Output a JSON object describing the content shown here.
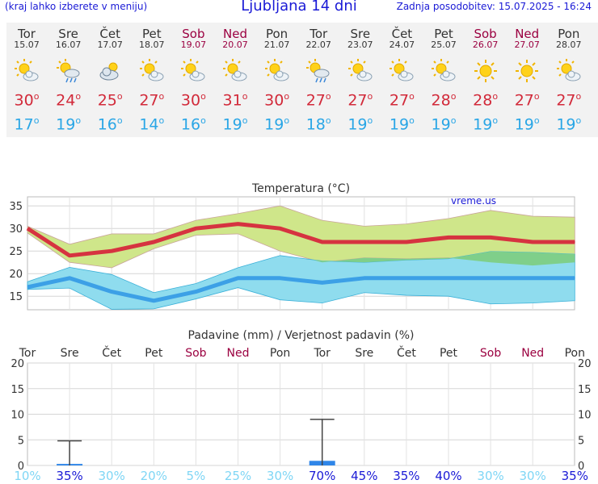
{
  "header": {
    "left": "(kraj lahko izberete v meniju)",
    "title": "Ljubljana 14 dni",
    "right": "Zadnja posodobitev: 15.07.2025 - 16:24"
  },
  "days": [
    {
      "name": "Tor",
      "date": "15.07",
      "weekend": false,
      "icon": "sun-cloud-icon",
      "tmax": "30",
      "tmin": "17"
    },
    {
      "name": "Sre",
      "date": "16.07",
      "weekend": false,
      "icon": "sun-rain-icon",
      "tmax": "24",
      "tmin": "19"
    },
    {
      "name": "Čet",
      "date": "17.07",
      "weekend": false,
      "icon": "cloud-sun-icon",
      "tmax": "25",
      "tmin": "16"
    },
    {
      "name": "Pet",
      "date": "18.07",
      "weekend": false,
      "icon": "sun-cloud-icon",
      "tmax": "27",
      "tmin": "14"
    },
    {
      "name": "Sob",
      "date": "19.07",
      "weekend": true,
      "icon": "sun-cloud-icon",
      "tmax": "30",
      "tmin": "16"
    },
    {
      "name": "Ned",
      "date": "20.07",
      "weekend": true,
      "icon": "sun-cloud-icon",
      "tmax": "31",
      "tmin": "19"
    },
    {
      "name": "Pon",
      "date": "21.07",
      "weekend": false,
      "icon": "sun-cloud-icon",
      "tmax": "30",
      "tmin": "19"
    },
    {
      "name": "Tor",
      "date": "22.07",
      "weekend": false,
      "icon": "sun-rain-icon",
      "tmax": "27",
      "tmin": "18"
    },
    {
      "name": "Sre",
      "date": "23.07",
      "weekend": false,
      "icon": "sun-cloud-icon",
      "tmax": "27",
      "tmin": "19"
    },
    {
      "name": "Čet",
      "date": "24.07",
      "weekend": false,
      "icon": "sun-cloud-icon",
      "tmax": "27",
      "tmin": "19"
    },
    {
      "name": "Pet",
      "date": "25.07",
      "weekend": false,
      "icon": "sun-cloud-icon",
      "tmax": "28",
      "tmin": "19"
    },
    {
      "name": "Sob",
      "date": "26.07",
      "weekend": true,
      "icon": "sun-icon",
      "tmax": "28",
      "tmin": "19"
    },
    {
      "name": "Ned",
      "date": "27.07",
      "weekend": true,
      "icon": "sun-icon",
      "tmax": "27",
      "tmin": "19"
    },
    {
      "name": "Pon",
      "date": "28.07",
      "weekend": false,
      "icon": "sun-cloud-icon",
      "tmax": "27",
      "tmin": "19"
    }
  ],
  "colors": {
    "max_line": "#d63340",
    "min_line": "#3ca0e6",
    "max_band": "#cfe68a",
    "min_band": "#8fdcee",
    "overlap_band": "#7fcf8a",
    "bar": "#2f86e8",
    "weekend_text": "#9b0040",
    "prob_text": "#7fd6f5",
    "prob_text_high": "#1a1ad6"
  },
  "chart_data": [
    {
      "type": "line",
      "title": "Temperatura (°C)",
      "watermark": "vreme.us",
      "categories": [
        "Tor",
        "Sre",
        "Čet",
        "Pet",
        "Sob",
        "Ned",
        "Pon",
        "Tor",
        "Sre",
        "Čet",
        "Pet",
        "Sob",
        "Ned",
        "Pon"
      ],
      "ylim": [
        12,
        37
      ],
      "yticks": [
        15,
        20,
        25,
        30,
        35
      ],
      "grid": true,
      "series": [
        {
          "values": [
            30,
            24,
            25,
            27,
            30,
            31,
            30,
            27,
            27,
            27,
            28,
            28,
            27,
            27
          ]
        },
        {
          "values": [
            17,
            19,
            16,
            14,
            16,
            19,
            19,
            18,
            19,
            19,
            19,
            19,
            19,
            19
          ]
        }
      ],
      "bands": [
        {
          "upper": [
            30.5,
            26.5,
            28.8,
            28.8,
            31.8,
            33.3,
            35,
            31.8,
            30.5,
            31,
            32.2,
            34,
            32.7,
            32.5
          ],
          "lower": [
            29,
            22.5,
            21.3,
            25.5,
            28.5,
            28.8,
            25,
            22.5,
            23.5,
            23.3,
            23.5,
            22.5,
            21.8,
            22.5
          ]
        },
        {
          "upper": [
            18.2,
            21.4,
            19.8,
            15.8,
            17.8,
            21.3,
            24,
            22.8,
            22.5,
            23,
            23.3,
            24.9,
            24.7,
            24.3
          ],
          "lower": [
            16.5,
            16.8,
            12.1,
            12.2,
            14.4,
            16.9,
            14.2,
            13.5,
            15.8,
            15.2,
            15,
            13.3,
            13.5,
            14
          ]
        }
      ]
    },
    {
      "type": "bar",
      "title": "Padavine (mm) / Verjetnost padavin (%)",
      "categories": [
        "Tor",
        "Sre",
        "Čet",
        "Pet",
        "Sob",
        "Ned",
        "Pon",
        "Tor",
        "Sre",
        "Čet",
        "Pet",
        "Sob",
        "Ned",
        "Pon"
      ],
      "weekend": [
        false,
        false,
        false,
        false,
        true,
        true,
        false,
        false,
        false,
        false,
        false,
        true,
        true,
        false
      ],
      "ylim": [
        0,
        20
      ],
      "yticks": [
        0,
        5,
        10,
        15,
        20
      ],
      "values": [
        0,
        0.3,
        0,
        0,
        0,
        0,
        0,
        0.9,
        0,
        0,
        0,
        0,
        0,
        0
      ],
      "error_high": [
        0,
        4.8,
        0,
        0,
        0,
        0,
        0,
        9,
        0,
        0,
        0,
        0,
        0,
        0
      ],
      "probability": [
        "10%",
        "35%",
        "30%",
        "20%",
        "5%",
        "25%",
        "30%",
        "70%",
        "45%",
        "35%",
        "40%",
        "30%",
        "30%",
        "35%"
      ]
    }
  ]
}
